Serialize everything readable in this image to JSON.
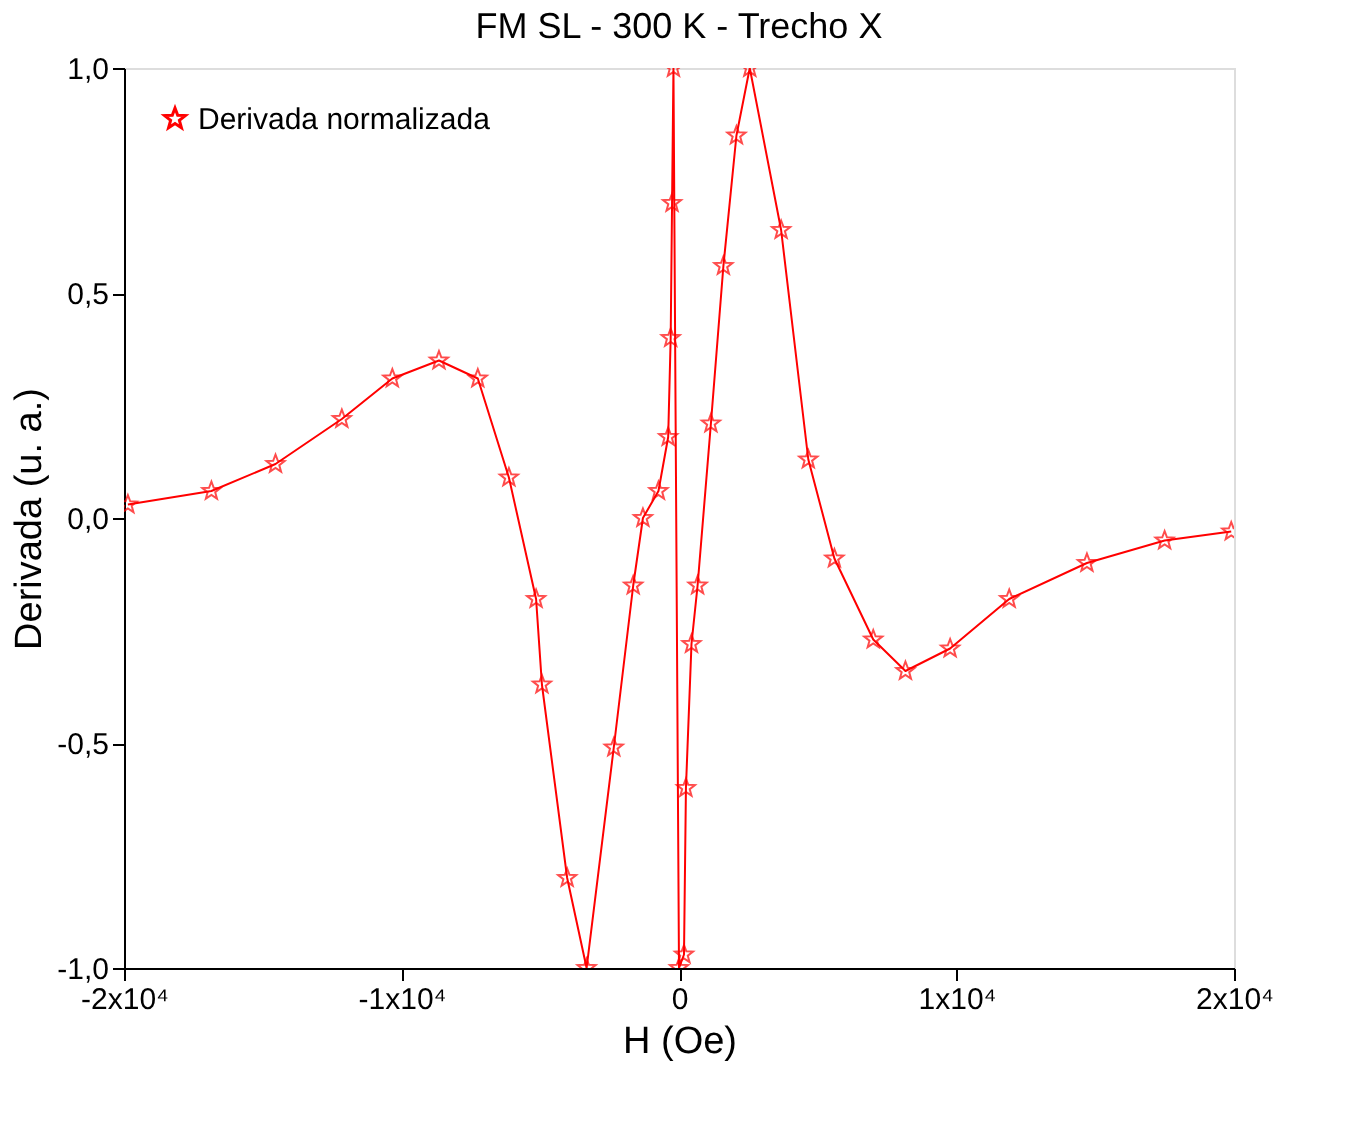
{
  "chart_data": {
    "type": "line",
    "title": "FM  SL - 300 K - Trecho X",
    "xlabel": "H (Oe)",
    "ylabel": "Derivada (u. a.)",
    "x": [
      -19860,
      -16850,
      -14540,
      -12150,
      -10330,
      -8650,
      -7250,
      -6130,
      -5150,
      -4940,
      -4030,
      -3330,
      -2350,
      -1650,
      -1300,
      -740,
      -390,
      -300,
      -250,
      -200,
      0,
      180,
      250,
      450,
      670,
      1150,
      1600,
      2070,
      2550,
      3680,
      4660,
      5600,
      7000,
      8160,
      9770,
      11900,
      14700,
      17500,
      19900
    ],
    "series": [
      {
        "name": "Derivada normalizada",
        "color": "#ff0000",
        "values": [
          0.03,
          0.06,
          0.12,
          0.22,
          0.31,
          0.35,
          0.31,
          0.09,
          -0.18,
          -0.37,
          -0.8,
          -1.0,
          -0.51,
          -0.15,
          0.0,
          0.06,
          0.18,
          0.4,
          0.7,
          1.0,
          -1.0,
          -0.97,
          -0.6,
          -0.28,
          -0.15,
          0.21,
          0.56,
          0.85,
          1.0,
          0.64,
          0.13,
          -0.09,
          -0.27,
          -0.34,
          -0.29,
          -0.18,
          -0.1,
          -0.05,
          -0.03
        ]
      }
    ],
    "xlim": [
      -20000,
      20000
    ],
    "ylim": [
      -1.0,
      1.0
    ],
    "xticks": [
      {
        "value": -20000,
        "label": "-2x10⁴"
      },
      {
        "value": -10000,
        "label": "-1x10⁴"
      },
      0,
      {
        "value": 10000,
        "label": "1x10⁴"
      },
      {
        "value": 20000,
        "label": "2x10⁴"
      }
    ],
    "yticks": [
      {
        "value": -1.0,
        "label": "-1,0"
      },
      {
        "value": -0.5,
        "label": "-0,5"
      },
      {
        "value": 0.0,
        "label": "0,0"
      },
      {
        "value": 0.5,
        "label": "0,5"
      },
      {
        "value": 1.0,
        "label": "1,0"
      }
    ],
    "marker": "star",
    "line_style": "solid",
    "grid": false,
    "legend": "top left"
  }
}
